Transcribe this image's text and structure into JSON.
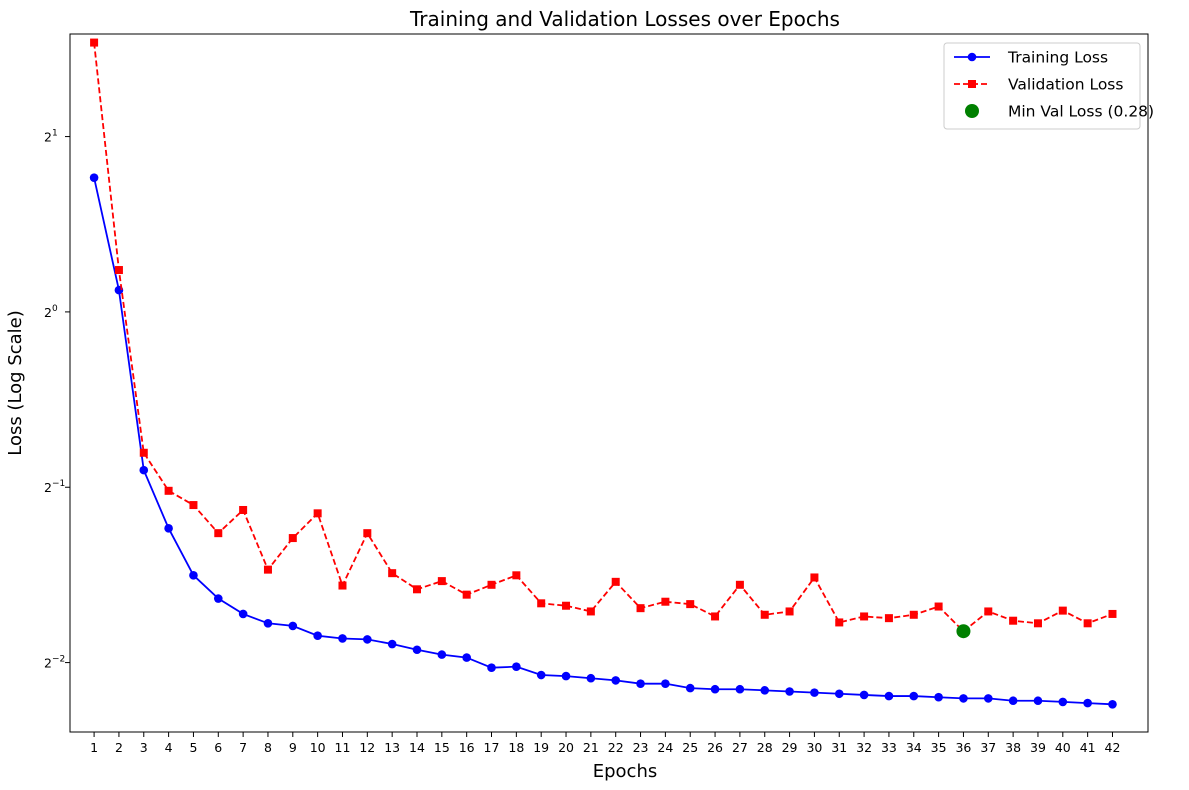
{
  "chart_data": {
    "type": "line",
    "title": "Training and Validation Losses over Epochs",
    "xlabel": "Epochs",
    "ylabel": "Loss (Log Scale)",
    "yscale": "log2",
    "ylim": [
      0.19,
      3.0
    ],
    "yticks": [
      {
        "value": 2,
        "base": "2",
        "exp": "1"
      },
      {
        "value": 1,
        "base": "2",
        "exp": "0"
      },
      {
        "value": 0.5,
        "base": "2",
        "exp": "−1"
      },
      {
        "value": 0.25,
        "base": "2",
        "exp": "−2"
      }
    ],
    "x": [
      1,
      2,
      3,
      4,
      5,
      6,
      7,
      8,
      9,
      10,
      11,
      12,
      13,
      14,
      15,
      16,
      17,
      18,
      19,
      20,
      21,
      22,
      23,
      24,
      25,
      26,
      27,
      28,
      29,
      30,
      31,
      32,
      33,
      34,
      35,
      36,
      37,
      38,
      39,
      40,
      41,
      42
    ],
    "x_tick_labels": [
      "1",
      "2",
      "3",
      "4",
      "5",
      "6",
      "7",
      "8",
      "9",
      "10",
      "11",
      "12",
      "13",
      "14",
      "15",
      "16",
      "17",
      "18",
      "19",
      "20",
      "21",
      "22",
      "23",
      "24",
      "25",
      "26",
      "27",
      "28",
      "29",
      "30",
      "31",
      "32",
      "33",
      "34",
      "35",
      "36",
      "37",
      "38",
      "39",
      "40",
      "41",
      "42"
    ],
    "series": [
      {
        "name": "Training Loss",
        "color": "#0000ff",
        "marker": "circle",
        "linestyle": "solid",
        "values": [
          1.7,
          1.09,
          0.535,
          0.425,
          0.353,
          0.322,
          0.303,
          0.292,
          0.289,
          0.278,
          0.275,
          0.274,
          0.269,
          0.263,
          0.258,
          0.255,
          0.245,
          0.246,
          0.238,
          0.237,
          0.235,
          0.233,
          0.23,
          0.23,
          0.226,
          0.225,
          0.225,
          0.224,
          0.223,
          0.222,
          0.221,
          0.22,
          0.219,
          0.219,
          0.218,
          0.217,
          0.217,
          0.215,
          0.215,
          0.214,
          0.213,
          0.212
        ]
      },
      {
        "name": "Validation Loss",
        "color": "#ff0000",
        "marker": "square",
        "linestyle": "dashed",
        "values": [
          2.9,
          1.18,
          0.573,
          0.493,
          0.466,
          0.417,
          0.457,
          0.361,
          0.409,
          0.451,
          0.339,
          0.417,
          0.356,
          0.334,
          0.345,
          0.327,
          0.34,
          0.353,
          0.316,
          0.313,
          0.306,
          0.344,
          0.31,
          0.318,
          0.315,
          0.3,
          0.34,
          0.302,
          0.306,
          0.35,
          0.293,
          0.3,
          0.298,
          0.302,
          0.312,
          0.283,
          0.306,
          0.295,
          0.292,
          0.307,
          0.292,
          0.303
        ]
      }
    ],
    "highlight": {
      "label": "Min Val Loss (0.28)",
      "x": 36,
      "y": 0.283,
      "color": "#008000"
    },
    "legend": "top-right",
    "grid": false
  }
}
